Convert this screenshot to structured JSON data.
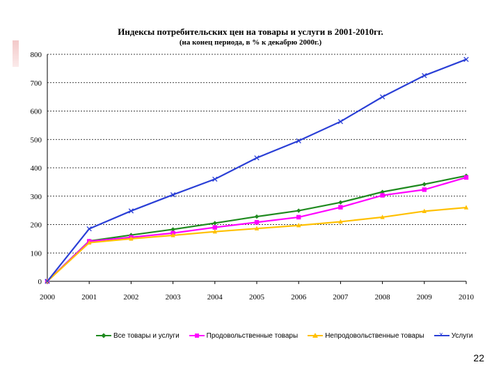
{
  "slide": {
    "page_number": "22"
  },
  "chart_data": {
    "type": "line",
    "title": "Индексы потребительских цен на товары и услуги в 2001-2010гг.",
    "subtitle": "(на конец периода, в % к декабрю 2000г.)",
    "xlabel": "",
    "ylabel": "",
    "categories": [
      "2000",
      "2001",
      "2002",
      "2003",
      "2004",
      "2005",
      "2006",
      "2007",
      "2008",
      "2009",
      "2010"
    ],
    "ylim": [
      0,
      800
    ],
    "yticks": [
      0,
      100,
      200,
      300,
      400,
      500,
      600,
      700,
      800
    ],
    "grid": true,
    "legend_position": "bottom",
    "series": [
      {
        "name": "Все товары и услуги",
        "color": "#1f8a1f",
        "marker": "diamond",
        "values": [
          0,
          142,
          163,
          183,
          205,
          228,
          249,
          278,
          315,
          342,
          372
        ]
      },
      {
        "name": "Продовольственные товары",
        "color": "#ff00ff",
        "marker": "square",
        "values": [
          0,
          141,
          155,
          170,
          190,
          208,
          226,
          261,
          303,
          323,
          366
        ]
      },
      {
        "name": "Непродовольственные товары",
        "color": "#ffc000",
        "marker": "triangle",
        "values": [
          0,
          136,
          150,
          162,
          175,
          186,
          197,
          210,
          226,
          247,
          260
        ]
      },
      {
        "name": "Услуги",
        "color": "#2a3fd6",
        "marker": "x",
        "values": [
          0,
          185,
          248,
          305,
          360,
          435,
          495,
          563,
          650,
          725,
          782
        ]
      }
    ]
  }
}
